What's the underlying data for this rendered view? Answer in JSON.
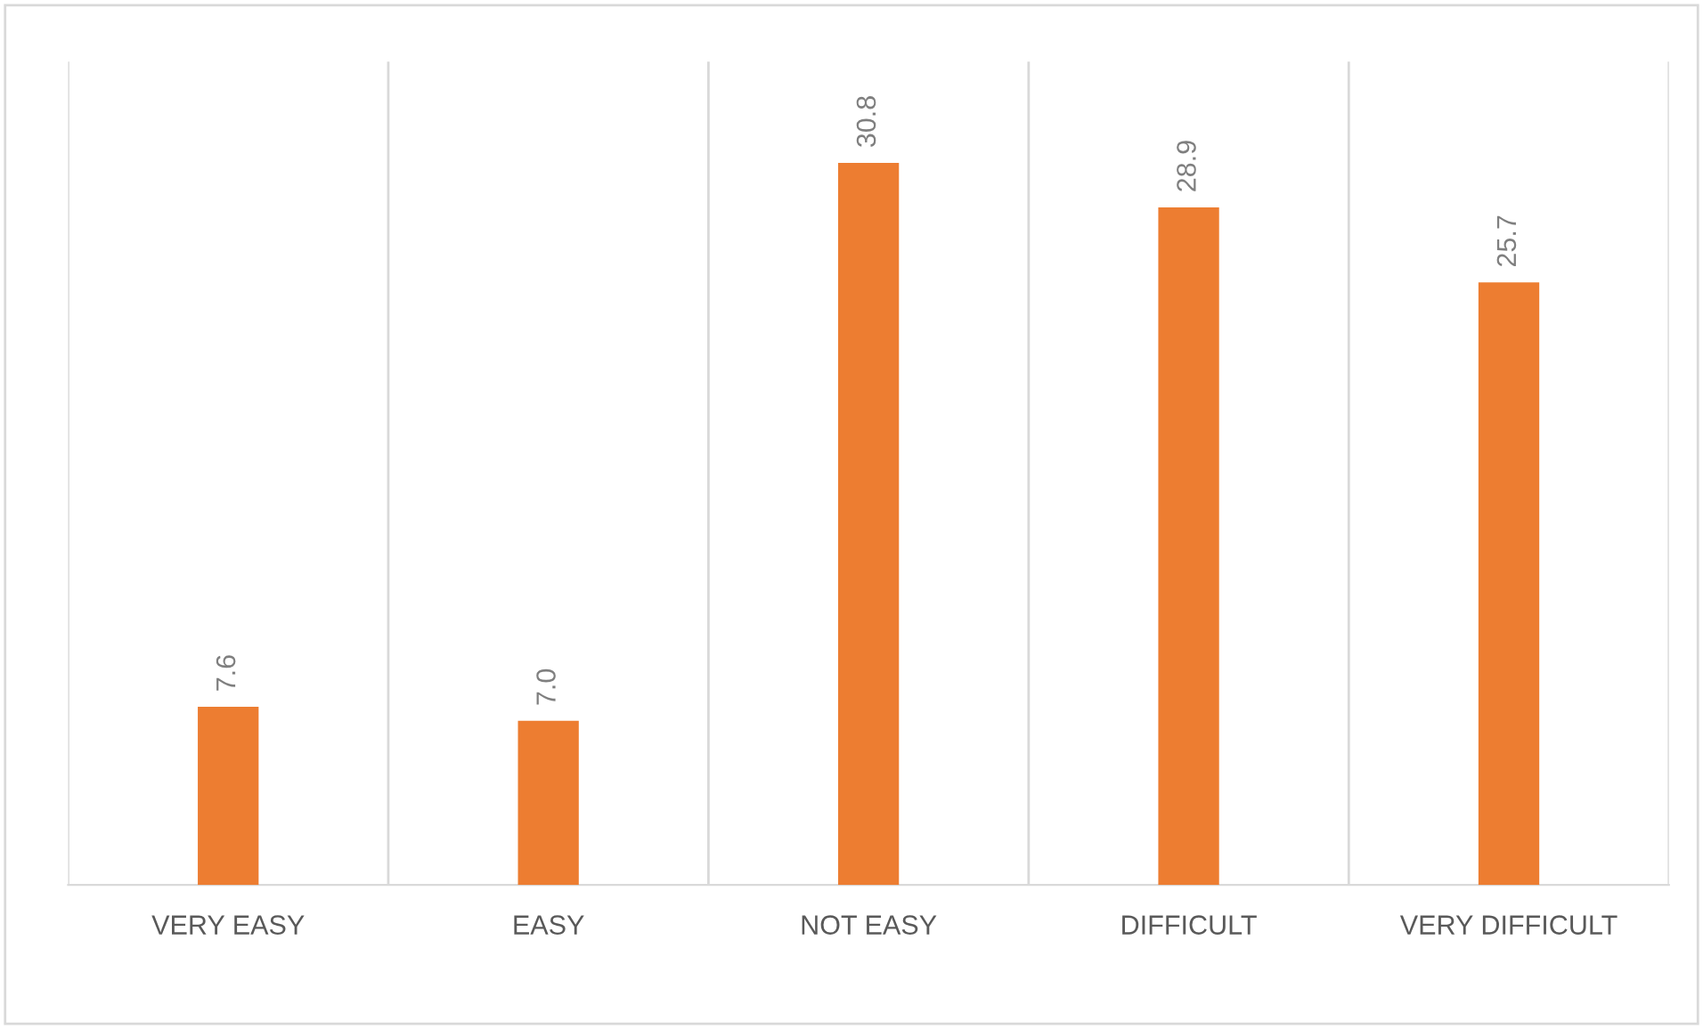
{
  "chart_data": {
    "type": "bar",
    "categories": [
      "VERY EASY",
      "EASY",
      "NOT EASY",
      "DIFFICULT",
      "VERY DIFFICULT"
    ],
    "values": [
      7.6,
      7.0,
      30.8,
      28.9,
      25.7
    ],
    "value_labels": [
      "7.6",
      "7.0",
      "30.8",
      "28.9",
      "25.7"
    ],
    "color": "#ed7d31",
    "grid": "x"
  }
}
